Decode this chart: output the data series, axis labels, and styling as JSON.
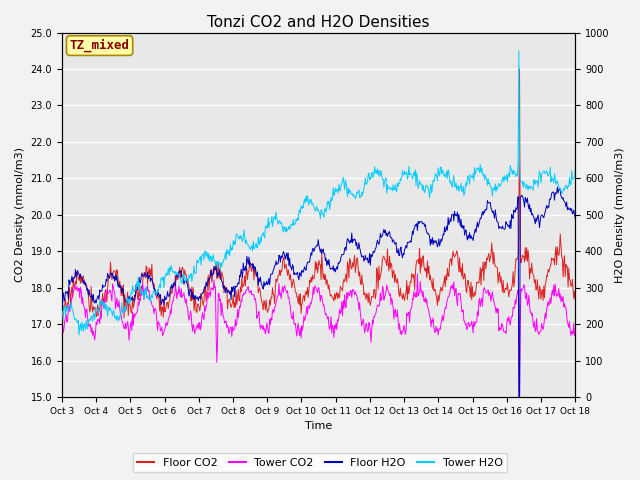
{
  "title": "Tonzi CO2 and H2O Densities",
  "xlabel": "Time",
  "ylabel_left": "CO2 Density (mmol/m3)",
  "ylabel_right": "H2O Density (mmol/m3)",
  "ylim_left": [
    15.0,
    25.0
  ],
  "ylim_right": [
    0,
    1000
  ],
  "yticks_left": [
    15.0,
    16.0,
    17.0,
    18.0,
    19.0,
    20.0,
    21.0,
    22.0,
    23.0,
    24.0,
    25.0
  ],
  "yticks_right": [
    0,
    100,
    200,
    300,
    400,
    500,
    600,
    700,
    800,
    900,
    1000
  ],
  "xtick_labels": [
    "Oct 3",
    "Oct 4",
    "Oct 5",
    "Oct 6",
    "Oct 7",
    "Oct 8",
    "Oct 9",
    "Oct 10",
    "Oct 11",
    "Oct 12",
    "Oct 13",
    "Oct 14",
    "Oct 15",
    "Oct 16",
    "Oct 17",
    "Oct 18"
  ],
  "annotation_text": "TZ_mixed",
  "annotation_color": "#880000",
  "annotation_bg": "#ffffaa",
  "colors": {
    "floor_co2": "#dd2222",
    "tower_co2": "#ff00ff",
    "floor_h2o": "#0000bb",
    "tower_h2o": "#00ccff"
  },
  "legend_labels": [
    "Floor CO2",
    "Tower CO2",
    "Floor H2O",
    "Tower H2O"
  ],
  "n_days": 15,
  "n_points_per_day": 48,
  "background_color": "#e8e8e8",
  "grid_color": "#ffffff",
  "title_fontsize": 11,
  "fig_width": 6.4,
  "fig_height": 4.8,
  "fig_dpi": 100
}
